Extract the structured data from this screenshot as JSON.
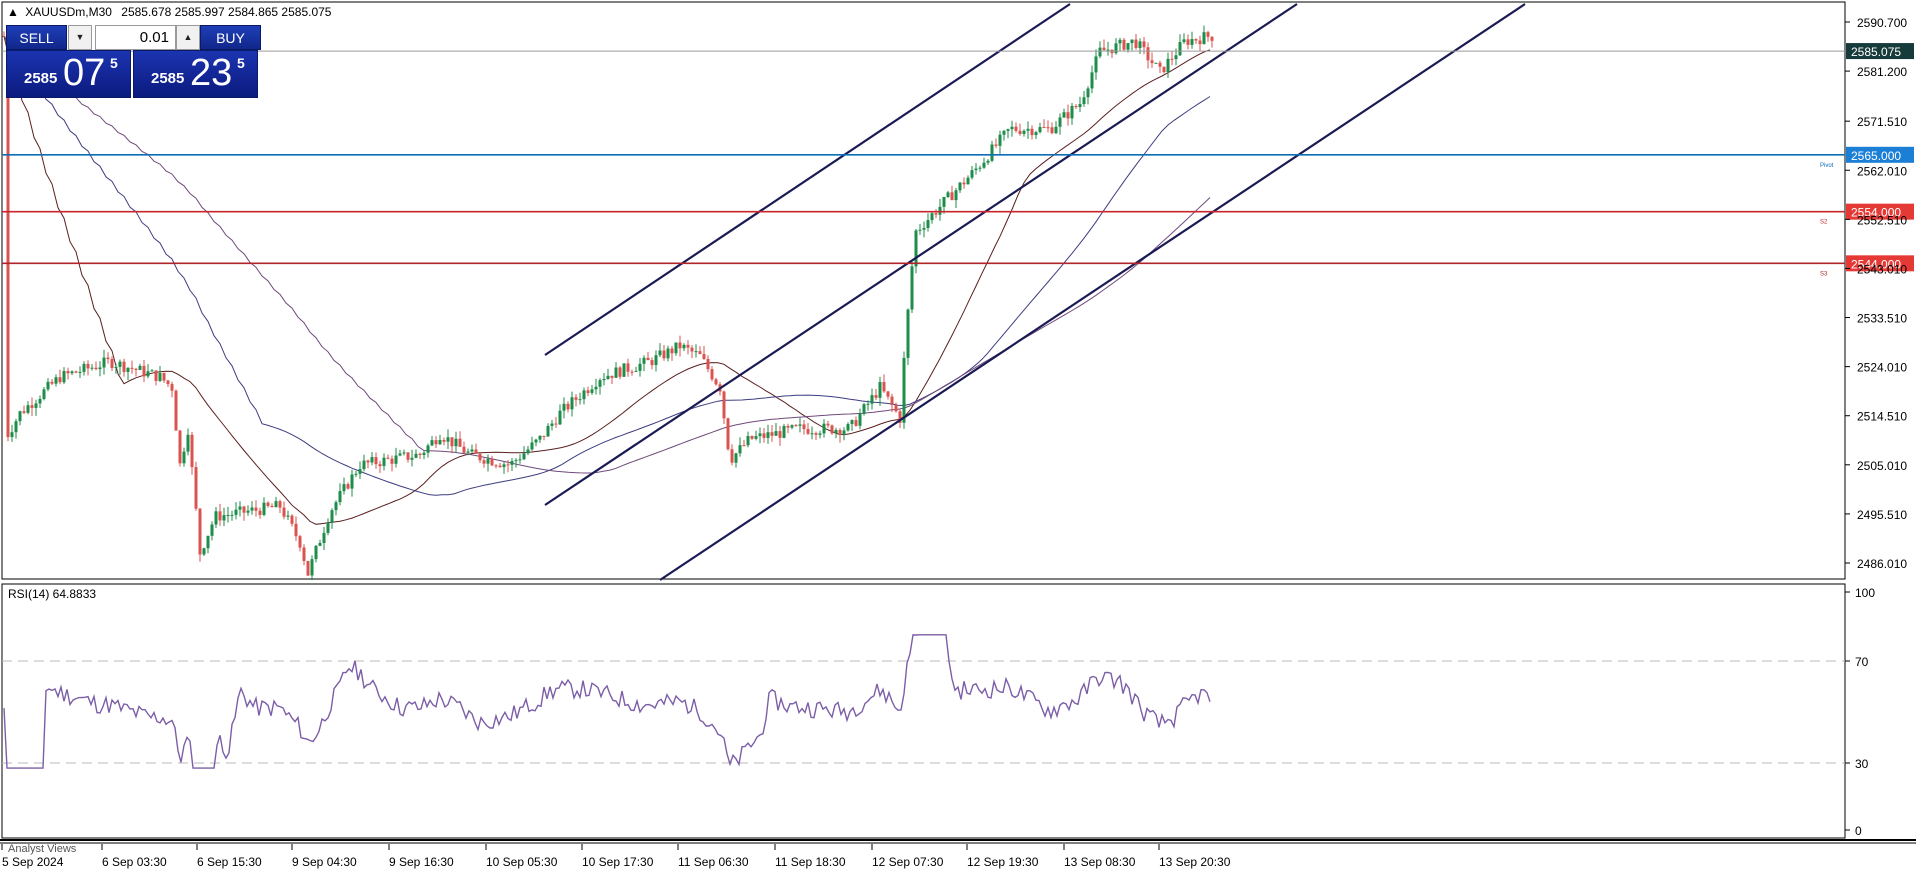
{
  "chart_header": {
    "arrow": "▲",
    "symbol_tf": "XAUUSDm,M30",
    "ohlc": "2585.678 2585.997 2584.865 2585.075"
  },
  "trade_panel": {
    "sell_label": "SELL",
    "buy_label": "BUY",
    "lot": "0.01",
    "sell_price_small": "2585",
    "sell_price_big": "07",
    "sell_price_sup": "5",
    "buy_price_small": "2585",
    "buy_price_big": "23",
    "buy_price_sup": "5"
  },
  "price_axis": {
    "ticks": [
      "2590.700",
      "2581.200",
      "2571.510",
      "2562.010",
      "2552.510",
      "2543.010",
      "2533.510",
      "2524.010",
      "2514.510",
      "2505.010",
      "2495.510",
      "2486.010"
    ],
    "current_price": "2585.075",
    "current_color": "#173a3a"
  },
  "levels": [
    {
      "price": 2565.0,
      "label": "2565.000",
      "tag": "Pivot",
      "color": "#0c6eb5",
      "badge": "#1c7fd6"
    },
    {
      "price": 2554.0,
      "label": "2554.000",
      "tag": "S2",
      "color": "#c8262b",
      "badge": "#e53935"
    },
    {
      "price": 2544.0,
      "label": "2544.000",
      "tag": "S3",
      "color": "#b0242a",
      "badge": "#e53935"
    }
  ],
  "rsi": {
    "label": "RSI(14) 64.8833",
    "levels": [
      "100",
      "70",
      "30",
      "0"
    ],
    "line_color": "#7b5ea7"
  },
  "time_axis": {
    "labels": [
      "5 Sep 2024",
      "6 Sep 03:30",
      "6 Sep 15:30",
      "9 Sep 04:30",
      "9 Sep 16:30",
      "10 Sep 05:30",
      "10 Sep 17:30",
      "11 Sep 06:30",
      "11 Sep 18:30",
      "12 Sep 07:30",
      "12 Sep 19:30",
      "13 Sep 08:30",
      "13 Sep 20:30"
    ]
  },
  "analyst_views": "Analyst Views",
  "colors": {
    "bull": "#1e8c4a",
    "bear": "#d9534f",
    "channel": "#1a1a55",
    "ma_dark": "#5a1f1f",
    "ma_mid": "#3d3d80",
    "ma_light": "#6f4a7a"
  }
}
